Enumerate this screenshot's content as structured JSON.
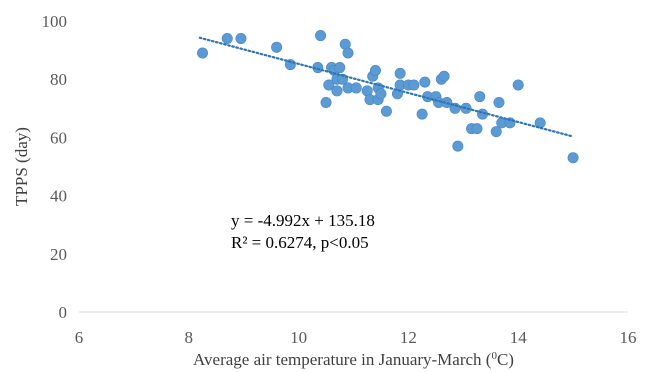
{
  "chart_data": {
    "type": "scatter",
    "xlabel": "Average air temperature in January-March (⁰C)",
    "xlabel_parts": {
      "before": "Average air temperature in January-March (",
      "sup": "0",
      "after": "C)"
    },
    "ylabel": "TPPS (day)",
    "xlim": [
      6,
      16
    ],
    "ylim": [
      0,
      100
    ],
    "xticks": [
      6,
      8,
      10,
      12,
      14,
      16
    ],
    "yticks": [
      0,
      20,
      40,
      60,
      80,
      100
    ],
    "grid": false,
    "legend": "none",
    "marker_color": "#5b9bd5",
    "trendline_color": "#2e75b6",
    "annotations": {
      "equation": "y = -4.992x + 135.18",
      "r2": "R² = 0.6274, p<0.05"
    },
    "trendline": {
      "slope": -4.992,
      "intercept": 135.18,
      "x_range": [
        8.2,
        15.0
      ]
    },
    "points": [
      {
        "x": 8.25,
        "y": 89
      },
      {
        "x": 8.7,
        "y": 94
      },
      {
        "x": 8.95,
        "y": 94
      },
      {
        "x": 9.6,
        "y": 91
      },
      {
        "x": 9.85,
        "y": 85
      },
      {
        "x": 10.35,
        "y": 84
      },
      {
        "x": 10.4,
        "y": 95
      },
      {
        "x": 10.5,
        "y": 72
      },
      {
        "x": 10.55,
        "y": 78
      },
      {
        "x": 10.6,
        "y": 84
      },
      {
        "x": 10.65,
        "y": 83
      },
      {
        "x": 10.7,
        "y": 80
      },
      {
        "x": 10.7,
        "y": 76
      },
      {
        "x": 10.75,
        "y": 84
      },
      {
        "x": 10.8,
        "y": 80
      },
      {
        "x": 10.85,
        "y": 92
      },
      {
        "x": 10.9,
        "y": 89
      },
      {
        "x": 10.9,
        "y": 77
      },
      {
        "x": 11.05,
        "y": 77
      },
      {
        "x": 11.25,
        "y": 76
      },
      {
        "x": 11.3,
        "y": 73
      },
      {
        "x": 11.35,
        "y": 81
      },
      {
        "x": 11.4,
        "y": 83
      },
      {
        "x": 11.45,
        "y": 77
      },
      {
        "x": 11.45,
        "y": 73
      },
      {
        "x": 11.5,
        "y": 75
      },
      {
        "x": 11.6,
        "y": 69
      },
      {
        "x": 11.8,
        "y": 75
      },
      {
        "x": 11.85,
        "y": 78
      },
      {
        "x": 11.85,
        "y": 82
      },
      {
        "x": 12.0,
        "y": 78
      },
      {
        "x": 12.1,
        "y": 78
      },
      {
        "x": 12.25,
        "y": 68
      },
      {
        "x": 12.3,
        "y": 79
      },
      {
        "x": 12.35,
        "y": 74
      },
      {
        "x": 12.5,
        "y": 74
      },
      {
        "x": 12.55,
        "y": 72
      },
      {
        "x": 12.6,
        "y": 80
      },
      {
        "x": 12.65,
        "y": 81
      },
      {
        "x": 12.7,
        "y": 72
      },
      {
        "x": 12.85,
        "y": 70
      },
      {
        "x": 12.9,
        "y": 57
      },
      {
        "x": 13.05,
        "y": 70
      },
      {
        "x": 13.15,
        "y": 63
      },
      {
        "x": 13.25,
        "y": 63
      },
      {
        "x": 13.3,
        "y": 74
      },
      {
        "x": 13.35,
        "y": 68
      },
      {
        "x": 13.6,
        "y": 62
      },
      {
        "x": 13.65,
        "y": 72
      },
      {
        "x": 13.7,
        "y": 65
      },
      {
        "x": 13.85,
        "y": 65
      },
      {
        "x": 14.0,
        "y": 78
      },
      {
        "x": 14.4,
        "y": 65
      },
      {
        "x": 15.0,
        "y": 53
      }
    ]
  }
}
